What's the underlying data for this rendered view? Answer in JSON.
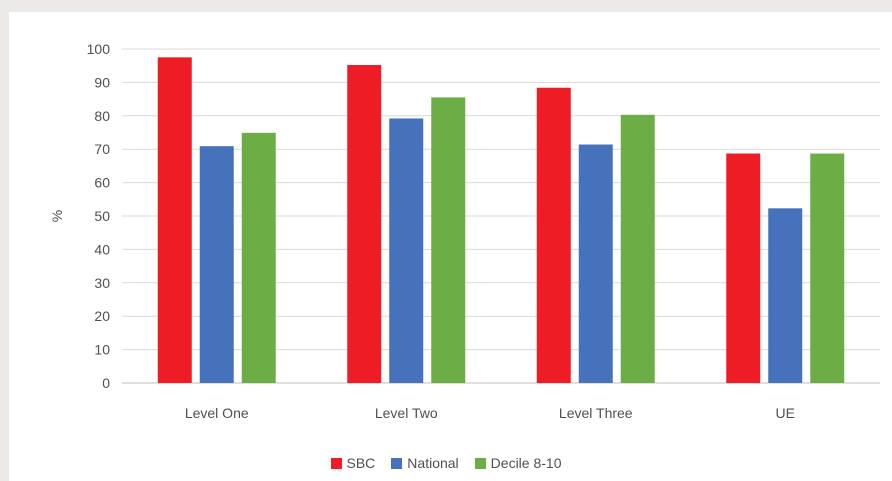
{
  "chart_data": {
    "type": "bar",
    "title": "",
    "xlabel": "",
    "ylabel": "%",
    "ylim": [
      0,
      100
    ],
    "yticks": [
      0,
      10,
      20,
      30,
      40,
      50,
      60,
      70,
      80,
      90,
      100
    ],
    "grid": true,
    "legend_position": "bottom",
    "categories": [
      "Level One",
      "Level Two",
      "Level Three",
      "UE"
    ],
    "series": [
      {
        "name": "SBC",
        "color": "#ee1c24",
        "values": [
          97.5,
          95.2,
          88.4,
          68.7
        ]
      },
      {
        "name": "National",
        "color": "#4672bb",
        "values": [
          70.9,
          79.2,
          71.4,
          52.3
        ]
      },
      {
        "name": "Decile 8-10",
        "color": "#6cad45",
        "values": [
          74.9,
          85.5,
          80.3,
          68.7
        ]
      }
    ]
  }
}
